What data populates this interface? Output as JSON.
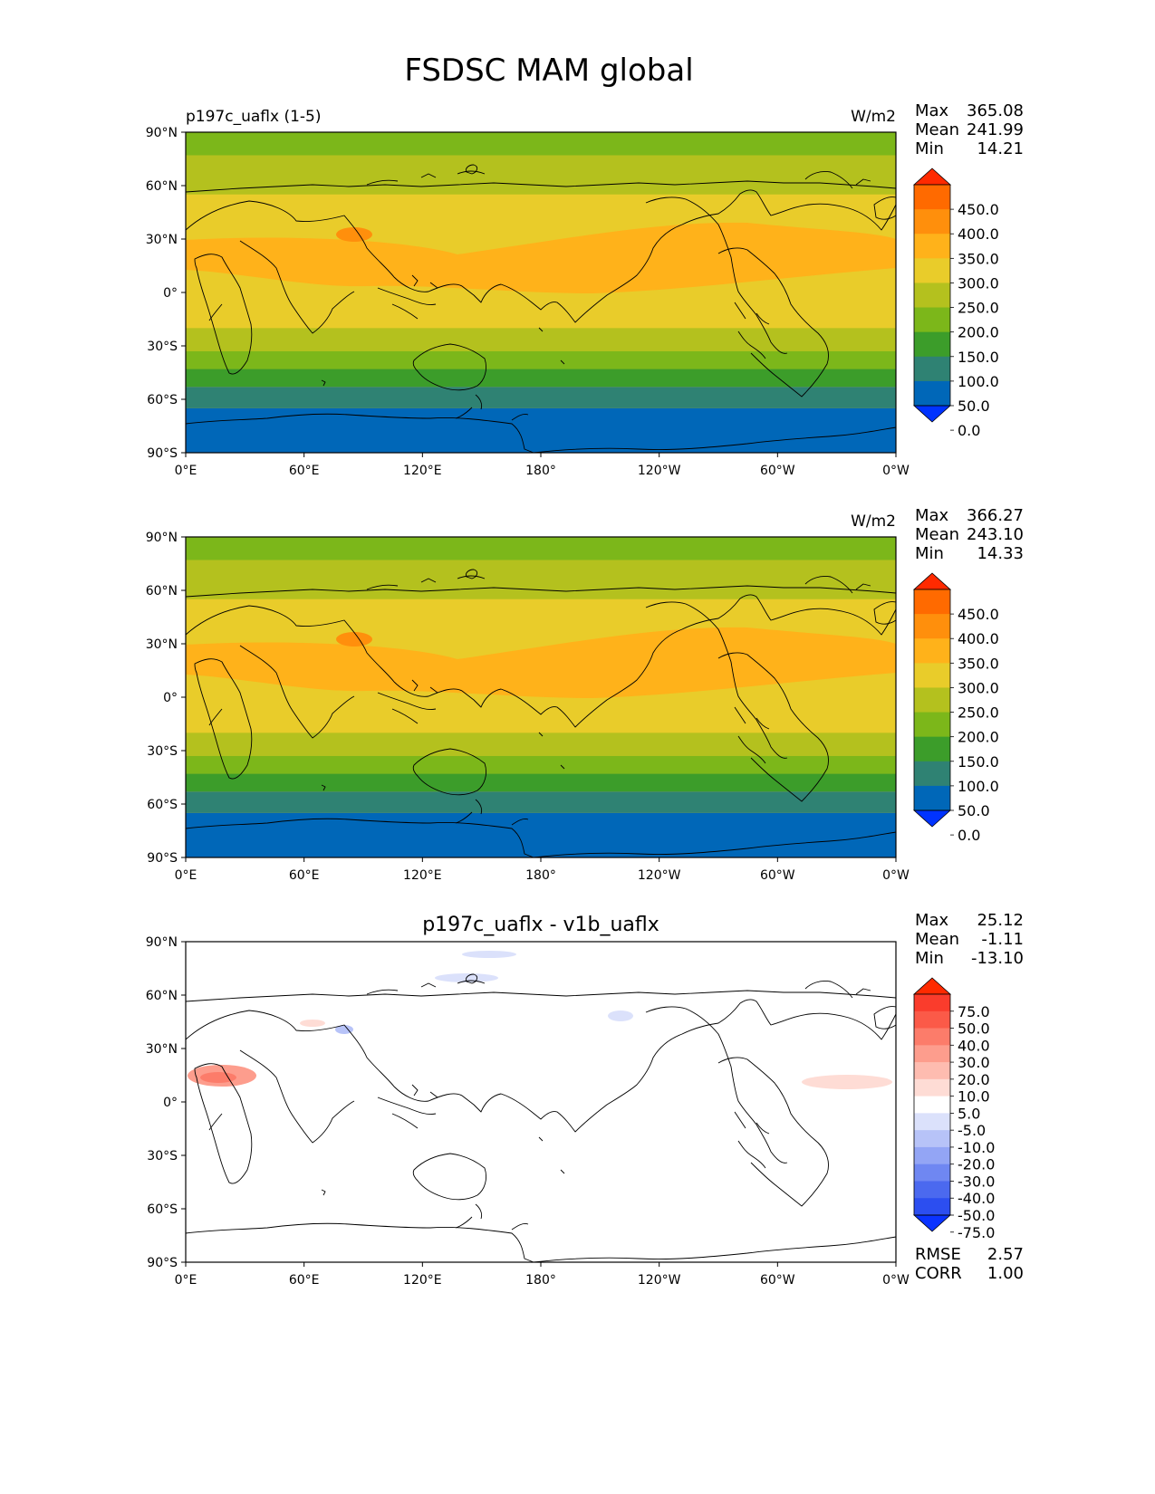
{
  "figure": {
    "title": "FSDSC MAM global"
  },
  "axes": {
    "lat_ticks": [
      "90°N",
      "60°N",
      "30°N",
      "0°",
      "30°S",
      "60°S",
      "90°S"
    ],
    "lon_ticks": [
      "0°E",
      "60°E",
      "120°E",
      "180°",
      "120°W",
      "60°W",
      "0°W"
    ]
  },
  "panels": [
    {
      "id": "test",
      "left_title": "p197c_uaflx (1-5)",
      "center_title": "",
      "units": "W/m2",
      "stats": [
        {
          "label": "Max",
          "value": "365.08"
        },
        {
          "label": "Mean",
          "value": "241.99"
        },
        {
          "label": "Min",
          "value": "14.21"
        }
      ],
      "colorbar": {
        "extend": "both",
        "tick_labels": [
          "450.0",
          "400.0",
          "350.0",
          "300.0",
          "250.0",
          "200.0",
          "150.0",
          "100.0",
          "50.0",
          "0.0"
        ],
        "colors": [
          "#ff2a00",
          "#ff6a00",
          "#ff8f0c",
          "#ffb21a",
          "#e9cc2a",
          "#b4c11e",
          "#7cb71a",
          "#3c9d2a",
          "#2f8273",
          "#0067b8",
          "#0033ff"
        ]
      },
      "field_bands": [
        {
          "lat_from": 90,
          "lat_to": 77,
          "color": "#7cb71a"
        },
        {
          "lat_from": 77,
          "lat_to": 55,
          "color": "#b4c11e"
        },
        {
          "lat_from": 55,
          "lat_to": 34,
          "color": "#e9cc2a"
        },
        {
          "lat_from": 34,
          "lat_to": 0,
          "color": "#e9cc2a"
        },
        {
          "lat_from": 0,
          "lat_to": -20,
          "color": "#e9cc2a"
        },
        {
          "lat_from": -20,
          "lat_to": -33,
          "color": "#b4c11e"
        },
        {
          "lat_from": -33,
          "lat_to": -43,
          "color": "#7cb71a"
        },
        {
          "lat_from": -43,
          "lat_to": -53,
          "color": "#3c9d2a"
        },
        {
          "lat_from": -53,
          "lat_to": -65,
          "color": "#2f8273"
        },
        {
          "lat_from": -65,
          "lat_to": -90,
          "color": "#0067b8"
        }
      ]
    },
    {
      "id": "reference",
      "left_title": "",
      "center_title": "",
      "units": "W/m2",
      "stats": [
        {
          "label": "Max",
          "value": "366.27"
        },
        {
          "label": "Mean",
          "value": "243.10"
        },
        {
          "label": "Min",
          "value": "14.33"
        }
      ],
      "colorbar": {
        "extend": "both",
        "tick_labels": [
          "450.0",
          "400.0",
          "350.0",
          "300.0",
          "250.0",
          "200.0",
          "150.0",
          "100.0",
          "50.0",
          "0.0"
        ],
        "colors": [
          "#ff2a00",
          "#ff6a00",
          "#ff8f0c",
          "#ffb21a",
          "#e9cc2a",
          "#b4c11e",
          "#7cb71a",
          "#3c9d2a",
          "#2f8273",
          "#0067b8",
          "#0033ff"
        ]
      },
      "field_bands": [
        {
          "lat_from": 90,
          "lat_to": 77,
          "color": "#7cb71a"
        },
        {
          "lat_from": 77,
          "lat_to": 55,
          "color": "#b4c11e"
        },
        {
          "lat_from": 55,
          "lat_to": 34,
          "color": "#e9cc2a"
        },
        {
          "lat_from": 34,
          "lat_to": 0,
          "color": "#e9cc2a"
        },
        {
          "lat_from": 0,
          "lat_to": -20,
          "color": "#e9cc2a"
        },
        {
          "lat_from": -20,
          "lat_to": -33,
          "color": "#b4c11e"
        },
        {
          "lat_from": -33,
          "lat_to": -43,
          "color": "#7cb71a"
        },
        {
          "lat_from": -43,
          "lat_to": -53,
          "color": "#3c9d2a"
        },
        {
          "lat_from": -53,
          "lat_to": -65,
          "color": "#2f8273"
        },
        {
          "lat_from": -65,
          "lat_to": -90,
          "color": "#0067b8"
        }
      ]
    },
    {
      "id": "difference",
      "left_title": "",
      "center_title": "p197c_uaflx - v1b_uaflx",
      "units": "",
      "stats": [
        {
          "label": "Max",
          "value": "25.12"
        },
        {
          "label": "Mean",
          "value": "-1.11"
        },
        {
          "label": "Min",
          "value": "-13.10"
        }
      ],
      "colorbar": {
        "extend": "both",
        "tick_labels": [
          "75.0",
          "50.0",
          "40.0",
          "30.0",
          "20.0",
          "10.0",
          "5.0",
          "-5.0",
          "-10.0",
          "-20.0",
          "-30.0",
          "-40.0",
          "-50.0",
          "-75.0"
        ],
        "colors": [
          "#ff2a00",
          "#fa3c2c",
          "#fb5a48",
          "#fc7c6a",
          "#fd9d8d",
          "#febcb0",
          "#fedcd5",
          "#ffffff",
          "#dbe1fb",
          "#b7c3f8",
          "#93a5f5",
          "#6f87f2",
          "#4b69ef",
          "#2c4ef0",
          "#0a33ff"
        ]
      },
      "field_bands": [],
      "footer_stats": [
        {
          "label": "RMSE",
          "value": "2.57"
        },
        {
          "label": "CORR",
          "value": "1.00"
        }
      ]
    }
  ]
}
